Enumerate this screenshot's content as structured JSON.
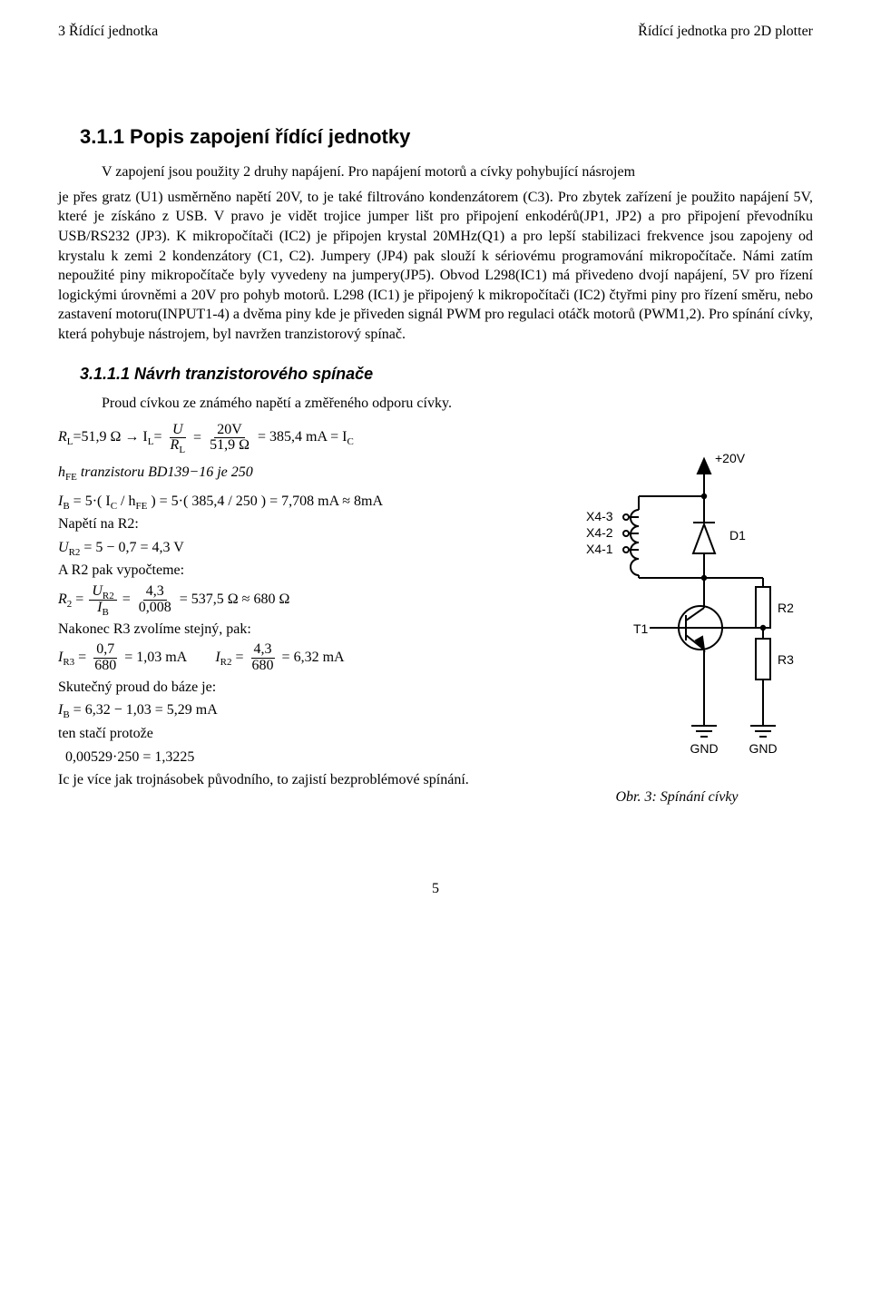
{
  "header": {
    "left": "3 Řídící jednotka",
    "right": "Řídící jednotka pro 2D plotter"
  },
  "section_title": "3.1.1    Popis zapojení řídící jednotky",
  "intro_first": "V zapojení jsou použity 2 druhy napájení. Pro napájení motorů a cívky pohybující násrojem",
  "intro_rest": "je přes gratz (U1) usměrněno napětí 20V, to je také filtrováno kondenzátorem (C3). Pro zbytek zařízení je použito napájení 5V, které je získáno z USB. V pravo je vidět trojice jumper lišt pro připojení enkodérů(JP1, JP2) a pro připojení převodníku USB/RS232 (JP3). K mikropočítači (IC2) je připojen krystal 20MHz(Q1) a pro lepší stabilizaci frekvence jsou zapojeny od krystalu k zemi 2 kondenzátory (C1, C2). Jumpery (JP4) pak slouží k sériovému programování mikropočítače. Námi zatím nepoužité piny mikropočítače byly vyvedeny na jumpery(JP5). Obvod L298(IC1) má přivedeno dvojí napájení, 5V pro řízení logickými úrovněmi a 20V pro pohyb motorů. L298 (IC1) je připojený k mikropočítači (IC2) čtyřmi piny pro řízení směru, nebo zastavení motoru(INPUT1-4) a dvěma piny kde je přiveden signál PWM pro regulaci otáčk motorů (PWM1,2). Pro spínání cívky, která pohybuje nástrojem, byl navržen tranzistorový spínač.",
  "subsection_title": "3.1.1.1 Návrh tranzistorového spínače",
  "calc": {
    "intro": "Proud cívkou ze známého napětí a změřeného odporu cívky.",
    "eq1_lhs_a": "R",
    "eq1_lhs_a_sub": "L",
    "eq1_lhs_a_tail": "=51,9 Ω → I",
    "eq1_lhs_b_sub": "L",
    "eq1_lhs_b_tail": "=",
    "eq1_f1_num": "U",
    "eq1_f1_den": "R",
    "eq1_f1_den_sub": "L",
    "eq1_mid": " = ",
    "eq1_f2_num": "20V",
    "eq1_f2_den": "51,9 Ω",
    "eq1_tail": " = 385,4 mA = I",
    "eq1_tail_sub": "C",
    "hfe_line_a": "h",
    "hfe_line_a_sub": "FE",
    "hfe_line_tail": " tranzistoru BD139−16 je 250",
    "ib_line": "I",
    "ib_sub": "B",
    "ib_tail": " = 5·( I",
    "ib_c_sub": "C",
    "ib_mid": " / h",
    "ib_h_sub": "FE",
    "ib_end": " ) = 5·( 385,4 / 250 ) = 7,708 mA ≈ 8mA",
    "ur2_label": "Napětí na R2:",
    "ur2_line": "U",
    "ur2_sub": "R2",
    "ur2_tail": " = 5 − 0,7 = 4,3 V",
    "r2_label": "A R2 pak vypočteme:",
    "r2_line": "R",
    "r2_sub": "2",
    "r2_mid": " = ",
    "r2_f1_num": "U",
    "r2_f1_num_sub": "R2",
    "r2_f1_den": "I",
    "r2_f1_den_sub": "B",
    "r2_f2_num": "4,3",
    "r2_f2_den": "0,008",
    "r2_tail": " = 537,5 Ω ≈ 680 Ω",
    "r3_label": "Nakonec R3 zvolíme stejný, pak:",
    "ir3_a": "I",
    "ir3_a_sub": "R3",
    "ir3_a_mid": " = ",
    "ir3_f1_num": "0,7",
    "ir3_f1_den": "680",
    "ir3_a_tail": " = 1,03 mA",
    "ir2_a": "I",
    "ir2_a_sub": "R2",
    "ir2_a_mid": " = ",
    "ir2_f1_num": "4,3",
    "ir2_f1_den": "680",
    "ir2_a_tail": " = 6,32 mA",
    "sk_label": "Skutečný proud do báze je:",
    "sk_line": "I",
    "sk_sub": "B",
    "sk_tail": " = 6,32 − 1,03 = 5,29 mA",
    "ten_line": "ten stačí protože",
    "last_line": "0,00529·250 = 1,3225",
    "final": "Ic je více jak trojnásobek původního, to zajistí bezproblémové spínání."
  },
  "schematic": {
    "caption": "Obr. 3: Spínání cívky",
    "labels": {
      "p20v": "+20V",
      "x43": "X4-3",
      "x42": "X4-2",
      "x41": "X4-1",
      "d1": "D1",
      "r2": "R2",
      "r3": "R3",
      "t1": "T1",
      "gnd1": "GND",
      "gnd2": "GND"
    },
    "colors": {
      "stroke": "#000000",
      "fill_bg": "#ffffff",
      "text": "#000000"
    },
    "line_width": 2,
    "font_size": 14
  },
  "page_number": "5"
}
